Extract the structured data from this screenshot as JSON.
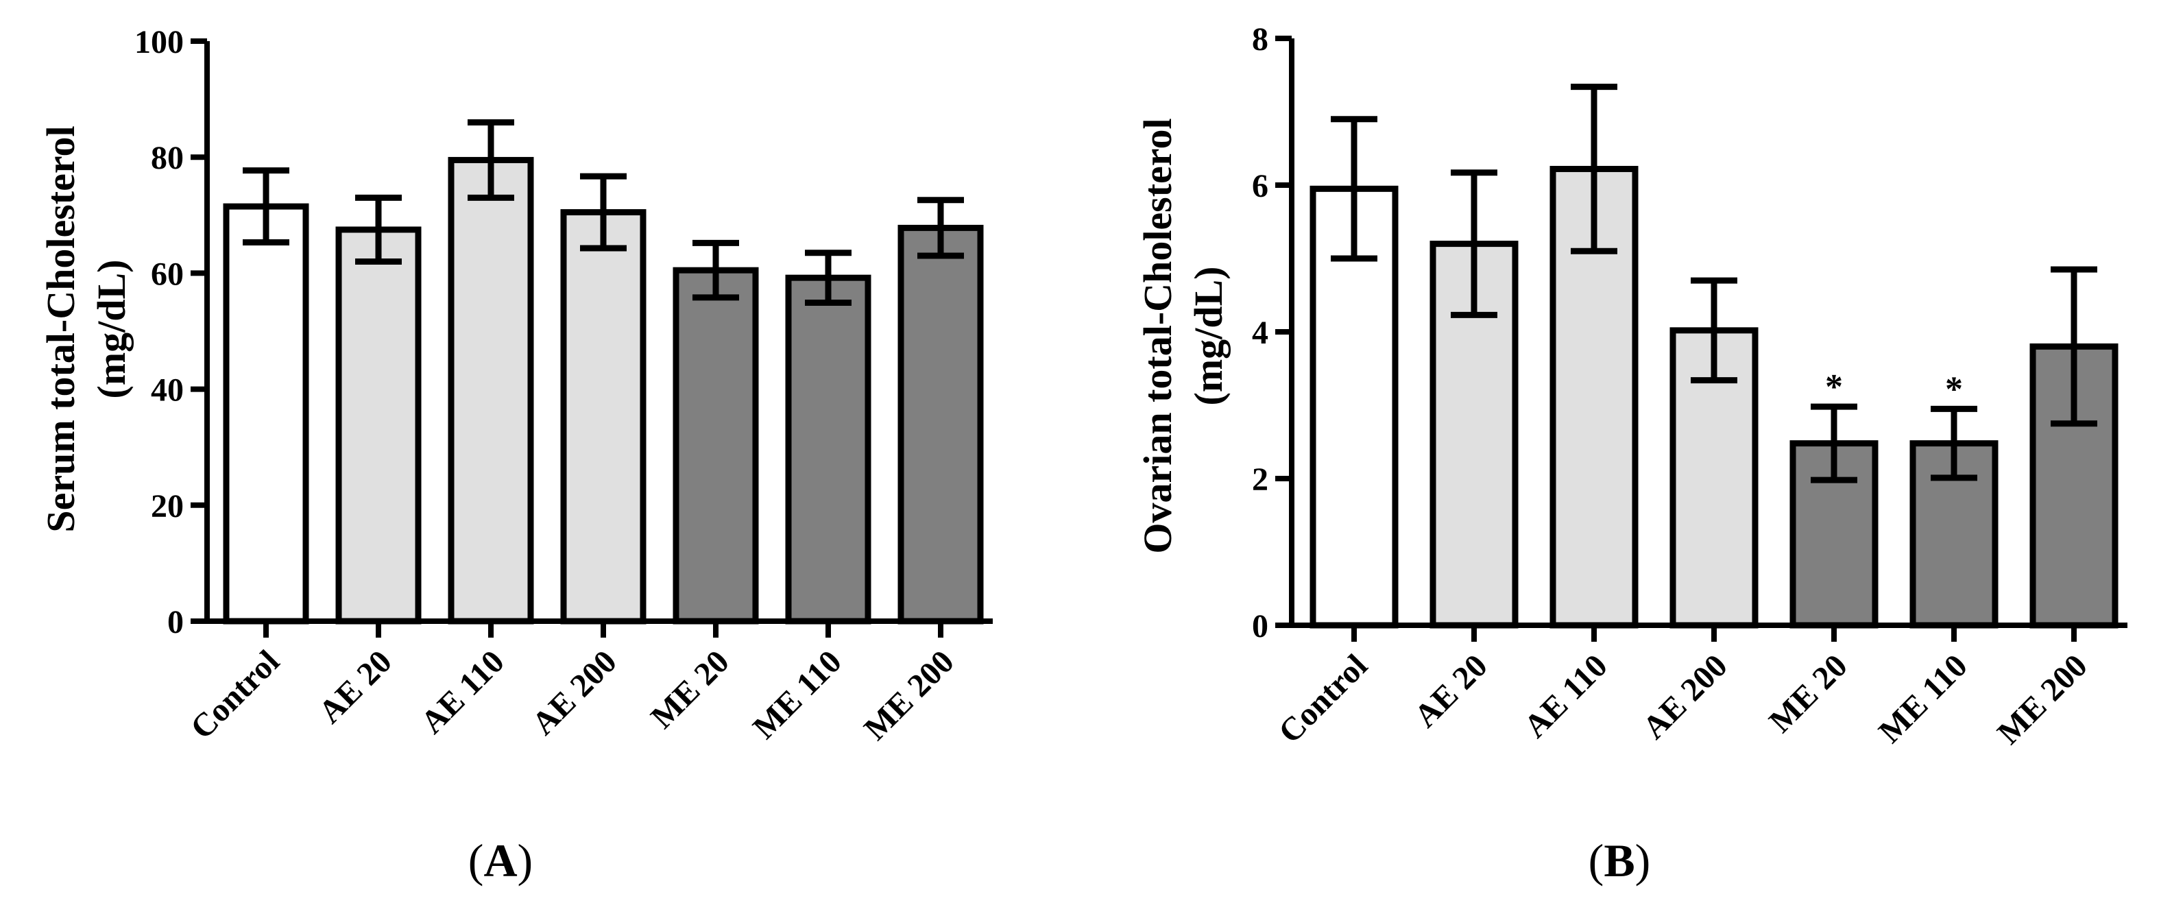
{
  "colors": {
    "control": "#ffffff",
    "ae": "#e0e0e0",
    "me": "#808080",
    "stroke": "#000000"
  },
  "chart_data": [
    {
      "type": "bar",
      "panel_label_open": "(",
      "panel_label_letter": "A",
      "panel_label_close": ")",
      "ylabel_line1": "Serum total-Cholesterol",
      "ylabel_line2": "(mg/dL)",
      "ylim": [
        0,
        100
      ],
      "yticks": [
        "0",
        "20",
        "40",
        "60",
        "80",
        "100"
      ],
      "categories": [
        "Control",
        "AE 20",
        "AE 110",
        "AE 200",
        "ME 20",
        "ME 110",
        "ME 200"
      ],
      "groups": [
        "control",
        "ae",
        "ae",
        "ae",
        "me",
        "me",
        "me"
      ],
      "values": [
        71.5,
        67.5,
        79.5,
        70.5,
        60.5,
        59.2,
        67.8
      ],
      "error": [
        6.2,
        5.5,
        6.5,
        6.2,
        4.7,
        4.3,
        4.8
      ],
      "significance": [
        "",
        "",
        "",
        "",
        "",
        "",
        ""
      ]
    },
    {
      "type": "bar",
      "panel_label_open": "(",
      "panel_label_letter": "B",
      "panel_label_close": ")",
      "ylabel_line1": "Ovarian total-Cholesterol",
      "ylabel_line2": "(mg/dL)",
      "ylim": [
        0,
        8
      ],
      "yticks": [
        "0",
        "2",
        "4",
        "6",
        "8"
      ],
      "categories": [
        "Control",
        "AE 20",
        "AE 110",
        "AE 200",
        "ME 20",
        "ME 110",
        "ME 200"
      ],
      "groups": [
        "control",
        "ae",
        "ae",
        "ae",
        "me",
        "me",
        "me"
      ],
      "values": [
        5.95,
        5.2,
        6.22,
        4.02,
        2.48,
        2.48,
        3.8
      ],
      "error": [
        0.95,
        0.97,
        1.12,
        0.68,
        0.5,
        0.47,
        1.05
      ],
      "significance": [
        "",
        "",
        "",
        "",
        "*",
        "*",
        ""
      ]
    }
  ]
}
